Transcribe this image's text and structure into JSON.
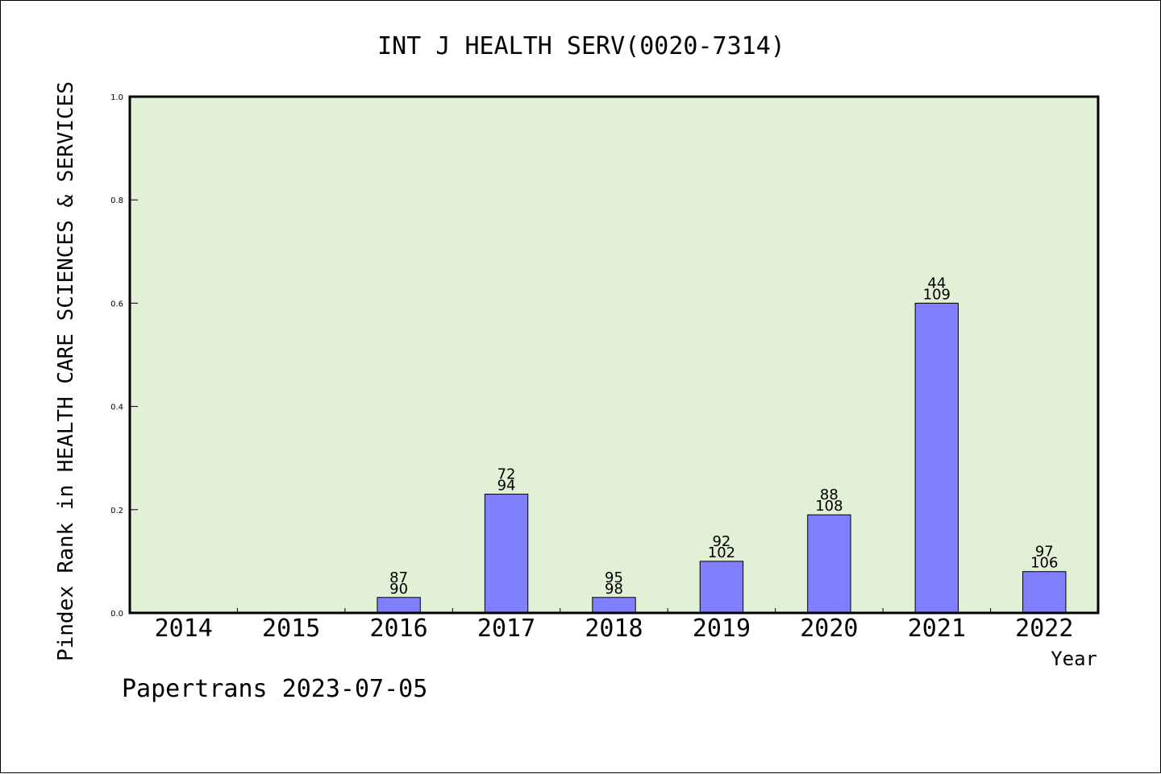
{
  "chart_data": {
    "type": "bar",
    "title": "INT J HEALTH SERV(0020-7314)",
    "xlabel": "Year",
    "ylabel": "Pindex Rank in HEALTH CARE SCIENCES & SERVICES",
    "footer": "Papertrans 2023-07-05",
    "categories": [
      "2014",
      "2015",
      "2016",
      "2017",
      "2018",
      "2019",
      "2020",
      "2021",
      "2022"
    ],
    "values": [
      0,
      0,
      0.03,
      0.23,
      0.03,
      0.1,
      0.19,
      0.6,
      0.08
    ],
    "label_top": [
      "",
      "",
      "87",
      "72",
      "95",
      "92",
      "88",
      "44",
      "97"
    ],
    "label_bottom": [
      "",
      "",
      "90",
      "94",
      "98",
      "102",
      "108",
      "109",
      "106"
    ],
    "ylim": [
      0,
      1.0
    ],
    "yticks": [
      "0.0",
      "0.2",
      "0.4",
      "0.6",
      "0.8",
      "1.0"
    ],
    "ytick_values": [
      0,
      0.2,
      0.4,
      0.6,
      0.8,
      1.0
    ],
    "grid": false,
    "colors": {
      "plot_background": "#e2f0d6",
      "bar_fill": "#8080ff",
      "bar_stroke": "#000000",
      "axis": "#000000"
    }
  }
}
